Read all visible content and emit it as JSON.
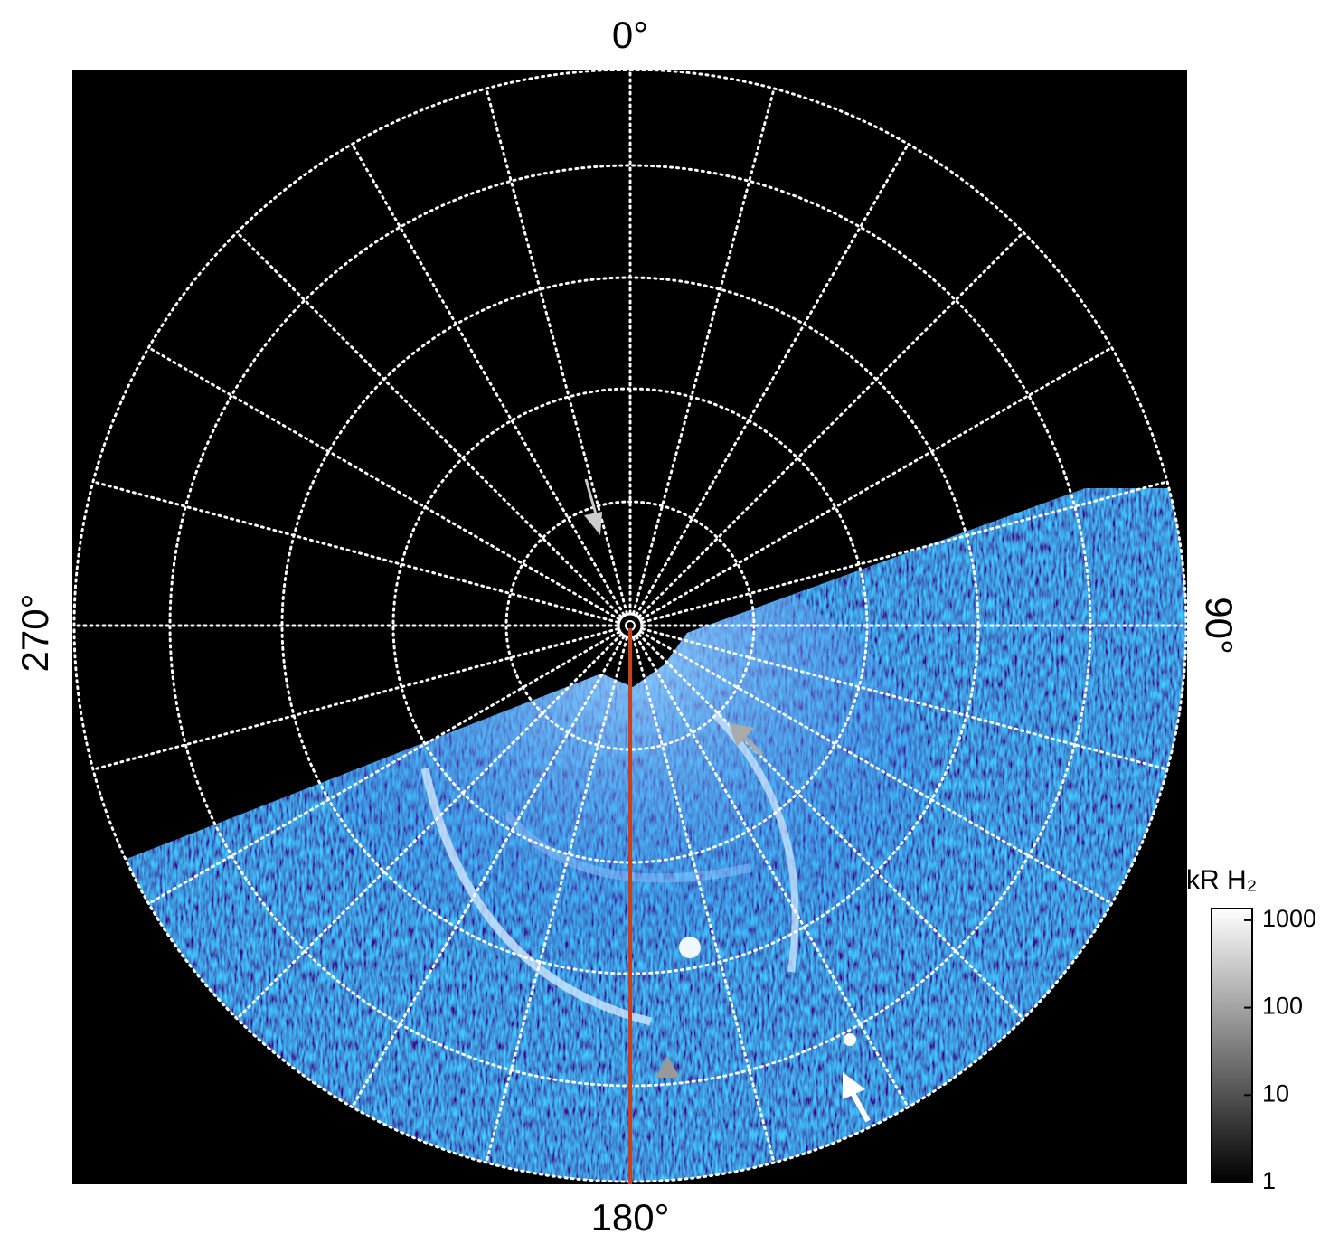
{
  "axis_labels": {
    "top": "0°",
    "right": "90°",
    "bottom": "180°",
    "left": "270°"
  },
  "colorbar": {
    "title": "kR H₂",
    "scale": "log",
    "lim": [
      1,
      1360
    ],
    "ticks": [
      1,
      10,
      100,
      1000
    ]
  }
}
